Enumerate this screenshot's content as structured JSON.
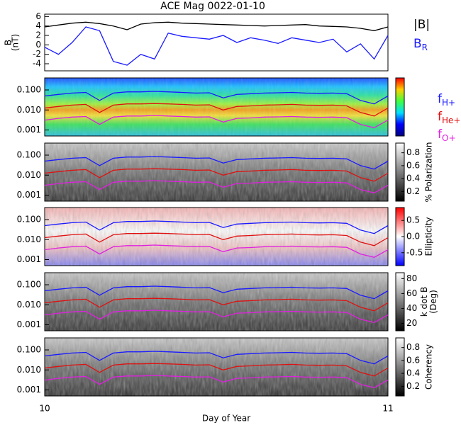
{
  "chart_data": [
    {
      "type": "line",
      "title": "ACE Mag 0022-01-10",
      "ylabel": [
        "B",
        "(nT)"
      ],
      "ylim": [
        -5.5,
        6.5
      ],
      "yticks": [
        -4,
        -2,
        0,
        2,
        4,
        6
      ],
      "xlim": [
        10,
        11
      ],
      "x": [
        10,
        10.04,
        10.08,
        10.12,
        10.16,
        10.2,
        10.24,
        10.28,
        10.32,
        10.36,
        10.4,
        10.44,
        10.48,
        10.52,
        10.56,
        10.6,
        10.64,
        10.68,
        10.72,
        10.76,
        10.8,
        10.84,
        10.88,
        10.92,
        10.96,
        11
      ],
      "series": [
        {
          "name": "|B|",
          "color": "#000000",
          "values": [
            3.8,
            4.2,
            4.6,
            4.8,
            4.5,
            4.0,
            3.2,
            4.4,
            4.7,
            4.8,
            4.6,
            4.5,
            4.4,
            4.3,
            4.2,
            4.1,
            4.0,
            4.1,
            4.2,
            4.3,
            4.0,
            3.9,
            3.8,
            3.5,
            3.0,
            3.8
          ]
        },
        {
          "name": "B",
          "subscript": "R",
          "color": "#1a1aff",
          "values": [
            -0.5,
            -2.0,
            0.5,
            3.8,
            3.0,
            -3.5,
            -4.3,
            -2.0,
            -3.0,
            2.5,
            1.8,
            1.5,
            1.2,
            2.0,
            0.5,
            1.5,
            1.0,
            0.3,
            1.5,
            1.0,
            0.5,
            1.2,
            -1.5,
            0.2,
            -3.0,
            2.0
          ]
        }
      ]
    },
    {
      "type": "spectrogram",
      "log_y": true,
      "ylim": [
        0.0005,
        0.4
      ],
      "yticks": [
        {
          "value": 0.001,
          "label": "0.001"
        },
        {
          "value": 0.01,
          "label": "0.010"
        },
        {
          "value": 0.1,
          "label": "0.100"
        }
      ],
      "xlim": [
        10,
        11
      ],
      "xticks": [
        10,
        11
      ],
      "xlabel": "Day of Year",
      "x": [
        10,
        10.04,
        10.08,
        10.12,
        10.16,
        10.2,
        10.24,
        10.28,
        10.32,
        10.36,
        10.4,
        10.44,
        10.48,
        10.52,
        10.56,
        10.6,
        10.64,
        10.68,
        10.72,
        10.76,
        10.8,
        10.84,
        10.88,
        10.92,
        10.96,
        11
      ],
      "series": [
        {
          "name": "f",
          "subscript": "H+",
          "color": "#1a1aff",
          "values": [
            0.05,
            0.06,
            0.07,
            0.075,
            0.03,
            0.07,
            0.08,
            0.08,
            0.085,
            0.08,
            0.075,
            0.07,
            0.072,
            0.04,
            0.06,
            0.065,
            0.07,
            0.072,
            0.075,
            0.07,
            0.068,
            0.07,
            0.065,
            0.03,
            0.02,
            0.05
          ]
        },
        {
          "name": "f",
          "subscript": "He+",
          "color": "#e01010",
          "values": [
            0.0125,
            0.015,
            0.0175,
            0.019,
            0.0075,
            0.0175,
            0.02,
            0.02,
            0.021,
            0.02,
            0.019,
            0.0175,
            0.018,
            0.01,
            0.015,
            0.016,
            0.0175,
            0.018,
            0.019,
            0.0175,
            0.017,
            0.0175,
            0.016,
            0.0075,
            0.005,
            0.0125
          ]
        },
        {
          "name": "f",
          "subscript": "O+",
          "color": "#e020e0",
          "values": [
            0.0031,
            0.0038,
            0.0044,
            0.0047,
            0.0019,
            0.0044,
            0.005,
            0.005,
            0.0053,
            0.005,
            0.0047,
            0.0044,
            0.0045,
            0.0025,
            0.0038,
            0.004,
            0.0044,
            0.0045,
            0.0047,
            0.0044,
            0.0043,
            0.0044,
            0.0041,
            0.0019,
            0.0013,
            0.0031
          ]
        }
      ],
      "panels": [
        {
          "colormap": "rainbow"
        },
        {
          "colormap": "gray",
          "colorbar_label": [
            "% Polarization"
          ],
          "clim": [
            0.05,
            0.95
          ],
          "cticks": [
            0.2,
            0.4,
            0.6,
            0.8
          ]
        },
        {
          "colormap": "redblue",
          "colorbar_label": [
            "Ellipticity"
          ],
          "clim": [
            -0.9,
            0.9
          ],
          "cticks": [
            -0.5,
            {
              "value": 0,
              "label": "0.0"
            },
            0.5
          ]
        },
        {
          "colormap": "gray",
          "colorbar_label": [
            "k dot B",
            "(Deg)"
          ],
          "clim": [
            10,
            88
          ],
          "cticks": [
            20,
            40,
            60,
            80
          ]
        },
        {
          "colormap": "gray",
          "colorbar_label": [
            "Coherency"
          ],
          "clim": [
            0.05,
            0.95
          ],
          "cticks": [
            0.2,
            0.4,
            0.6,
            0.8
          ]
        }
      ]
    }
  ]
}
